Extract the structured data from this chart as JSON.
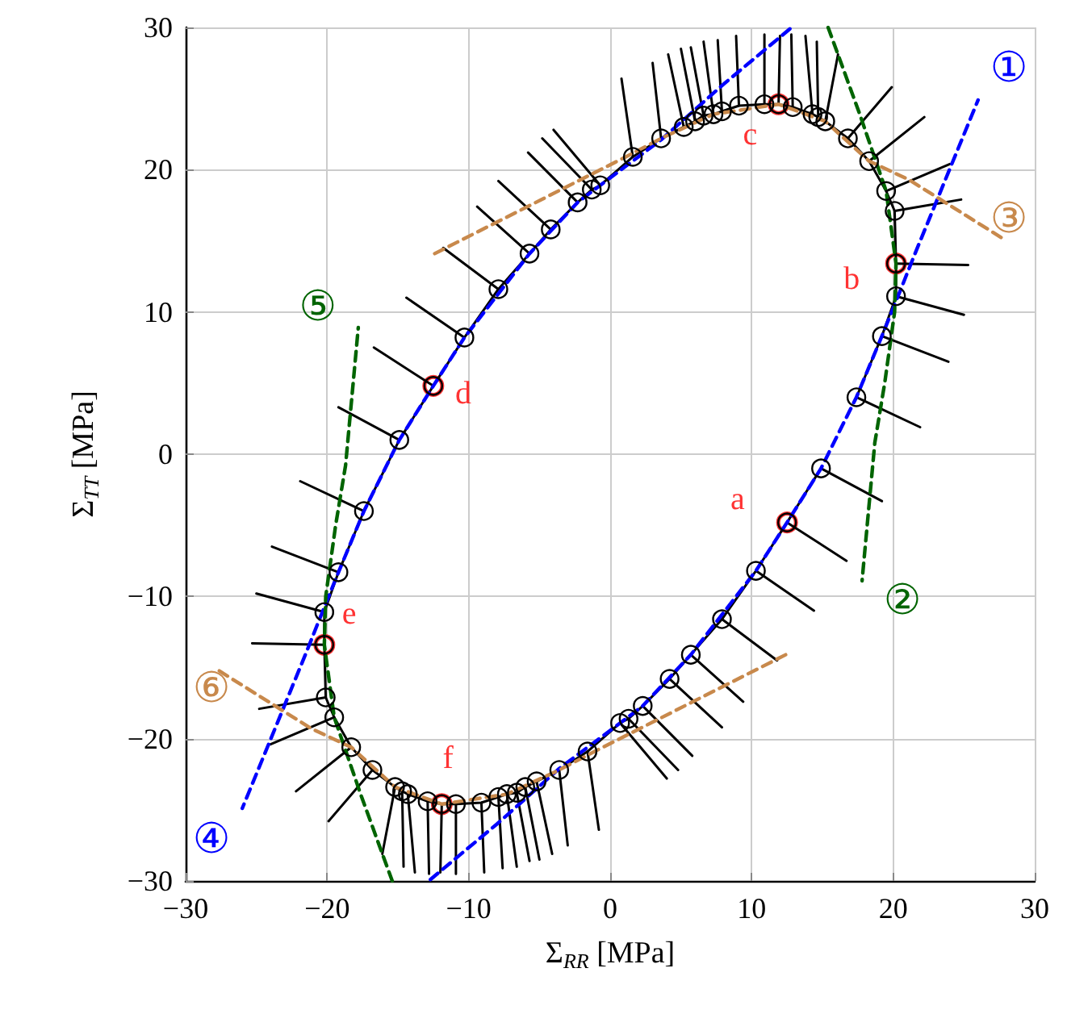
{
  "chart_data": {
    "type": "line",
    "xlabel": "Σ$_{RR}$ [MPa]",
    "ylabel": "Σ$_{TT}$ [MPa]",
    "xlim": [
      -30,
      30
    ],
    "ylim": [
      -30,
      30
    ],
    "xticks": [
      {
        "value": -30,
        "label": "−30"
      },
      {
        "value": -20,
        "label": "−20"
      },
      {
        "value": -10,
        "label": "−10"
      },
      0,
      10,
      20,
      30
    ],
    "yticks": [
      {
        "value": -30,
        "label": "−30"
      },
      {
        "value": -20,
        "label": "−20"
      },
      {
        "value": -10,
        "label": "−10"
      },
      0,
      10,
      20,
      30
    ],
    "grid": true,
    "series": [
      {
        "type": "line",
        "color": "#000000",
        "marker": "circle",
        "line_style": "solid",
        "x": [
          14.9,
          12.5,
          10.3,
          7.9,
          5.7,
          4.2,
          2.3,
          1.3,
          0.7,
          -1.6,
          -3.6,
          -5.2,
          -6.0,
          -6.6,
          -7.3,
          -7.9,
          -9.1,
          -10.9,
          -11.9,
          -12.9,
          -14.3,
          -14.7,
          -15.2,
          -16.8,
          -18.3,
          -19.5,
          -20.1,
          -20.2,
          -20.2,
          -19.2,
          -17.4,
          -14.9,
          -12.5,
          -10.3,
          -7.9,
          -5.7,
          -4.2,
          -2.3,
          -1.3,
          -0.7,
          1.6,
          3.6,
          5.2,
          6.0,
          6.6,
          7.3,
          7.9,
          9.1,
          10.9,
          11.9,
          12.9,
          14.3,
          14.7,
          15.2,
          16.8,
          18.3,
          19.5,
          20.1,
          20.2,
          20.2,
          19.2,
          17.4
        ],
        "values": [
          -1.0,
          -4.8,
          -8.2,
          -11.6,
          -14.1,
          -15.8,
          -17.7,
          -18.6,
          -18.9,
          -20.9,
          -22.2,
          -23.0,
          -23.4,
          -23.8,
          -23.9,
          -24.1,
          -24.5,
          -24.6,
          -24.6,
          -24.4,
          -23.9,
          -23.7,
          -23.4,
          -22.2,
          -20.6,
          -18.5,
          -17.1,
          -13.4,
          -11.1,
          -8.3,
          -4.0,
          1.0,
          4.8,
          8.2,
          11.6,
          14.1,
          15.8,
          17.7,
          18.6,
          18.9,
          20.9,
          22.2,
          23.0,
          23.4,
          23.8,
          23.9,
          24.1,
          24.5,
          24.6,
          24.6,
          24.4,
          23.9,
          23.7,
          23.4,
          22.2,
          20.6,
          18.5,
          17.1,
          13.4,
          11.1,
          8.3,
          4.0
        ]
      },
      {
        "type": "line",
        "color": "#000000",
        "marker": "none",
        "line_style": "solid",
        "x": [
          14.9,
          19.2,
          null,
          12.5,
          16.7,
          null,
          10.3,
          14.4,
          null,
          7.9,
          11.8,
          null,
          5.7,
          9.4,
          null,
          4.2,
          7.9,
          null,
          2.3,
          5.8,
          null,
          1.3,
          4.8,
          null,
          0.7,
          4.0,
          null,
          -1.6,
          -0.8,
          null,
          -3.6,
          -3.0,
          null,
          -5.2,
          -4.1,
          null,
          -6.0,
          -5.0,
          null,
          -6.6,
          -5.7,
          null,
          -7.3,
          -6.6,
          null,
          -7.9,
          -7.6,
          null,
          -9.1,
          -8.9,
          null,
          -10.9,
          -10.9,
          null,
          -11.9,
          -12.0,
          null,
          -12.9,
          -12.8,
          null,
          -14.3,
          -13.8,
          null,
          -14.7,
          -14.6,
          null,
          -15.2,
          -16.1,
          null,
          -16.8,
          -19.9,
          null,
          -18.3,
          -22.2,
          null,
          -19.5,
          -24.0,
          null,
          -20.1,
          -24.8,
          null,
          -20.2,
          -25.3,
          null,
          -20.2,
          -25.0,
          null,
          -19.2,
          -23.9,
          null,
          -17.4,
          -21.9,
          null,
          -14.9,
          -19.2,
          null,
          -12.5,
          -16.7,
          null,
          -10.3,
          -14.4,
          null,
          -7.9,
          -11.8,
          null,
          -5.7,
          -9.4,
          null,
          -4.2,
          -7.9,
          null,
          -2.3,
          -5.8,
          null,
          -1.3,
          -4.8,
          null,
          -0.7,
          -4.0,
          null,
          1.6,
          0.8,
          null,
          3.6,
          3.0,
          null,
          5.2,
          4.1,
          null,
          6.0,
          5.0,
          null,
          6.6,
          5.7,
          null,
          7.3,
          6.6,
          null,
          7.9,
          7.6,
          null,
          9.1,
          8.9,
          null,
          10.9,
          10.9,
          null,
          11.9,
          12.0,
          null,
          12.9,
          12.8,
          null,
          14.3,
          13.8,
          null,
          14.7,
          14.6,
          null,
          15.2,
          16.1,
          null,
          16.8,
          19.9,
          null,
          18.3,
          22.2,
          null,
          19.5,
          24.0,
          null,
          20.1,
          24.8,
          null,
          20.2,
          25.3,
          null,
          20.2,
          25.0,
          null,
          19.2,
          23.9,
          null,
          17.4,
          21.9
        ],
        "values": [
          -1.0,
          -3.3,
          null,
          -4.8,
          -7.5,
          null,
          -8.2,
          -11.0,
          null,
          -11.6,
          -14.5,
          null,
          -14.1,
          -17.4,
          null,
          -15.8,
          -19.2,
          null,
          -17.7,
          -21.2,
          null,
          -18.6,
          -22.2,
          null,
          -18.9,
          -22.8,
          null,
          -20.9,
          -26.4,
          null,
          -22.2,
          -27.5,
          null,
          -23.0,
          -28.1,
          null,
          -23.4,
          -28.5,
          null,
          -23.8,
          -28.6,
          null,
          -23.9,
          -29.0,
          null,
          -24.1,
          -29.1,
          null,
          -24.5,
          -29.4,
          null,
          -24.6,
          -29.5,
          null,
          -24.6,
          -29.4,
          null,
          -24.4,
          -29.5,
          null,
          -23.9,
          -29.4,
          null,
          -23.7,
          -29.0,
          null,
          -23.4,
          -28.1,
          null,
          -22.2,
          -25.8,
          null,
          -20.6,
          -23.7,
          null,
          -18.5,
          -20.4,
          null,
          -17.1,
          -17.9,
          null,
          -13.4,
          -13.3,
          null,
          -11.1,
          -9.8,
          null,
          -8.3,
          -6.5,
          null,
          -4.0,
          -1.9,
          null,
          1.0,
          3.3,
          null,
          4.8,
          7.5,
          null,
          8.2,
          11.0,
          null,
          11.6,
          14.5,
          null,
          14.1,
          17.4,
          null,
          15.8,
          19.2,
          null,
          17.7,
          21.2,
          null,
          18.6,
          22.2,
          null,
          18.9,
          22.8,
          null,
          20.9,
          26.4,
          null,
          22.2,
          27.5,
          null,
          23.0,
          28.1,
          null,
          23.4,
          28.5,
          null,
          23.8,
          28.6,
          null,
          23.9,
          29.0,
          null,
          24.1,
          29.1,
          null,
          24.5,
          29.4,
          null,
          24.6,
          29.5,
          null,
          24.6,
          29.4,
          null,
          24.4,
          29.5,
          null,
          23.9,
          29.4,
          null,
          23.7,
          29.0,
          null,
          23.4,
          28.1,
          null,
          22.2,
          25.8,
          null,
          20.6,
          23.7,
          null,
          18.5,
          20.4,
          null,
          17.1,
          17.9,
          null,
          13.4,
          13.3,
          null,
          11.1,
          9.8,
          null,
          8.3,
          6.5,
          null,
          4.0,
          1.9
        ]
      },
      {
        "type": "line",
        "name": "①",
        "color": "#0000ff",
        "marker": "none",
        "line_style": "dashed",
        "x": [
          -12.7,
          -8.0,
          -3.6,
          0.7,
          2.3,
          5.7,
          10.3,
          12.5,
          14.9,
          17.4,
          19.2,
          20.3,
          21.5,
          26.0
        ],
        "values": [
          -29.9,
          -26.0,
          -22.1,
          -18.9,
          -17.7,
          -14.1,
          -8.2,
          -4.8,
          -1.0,
          4.0,
          8.3,
          11.0,
          14.0,
          24.9
        ]
      },
      {
        "type": "line",
        "name": "④",
        "color": "#0000ff",
        "marker": "none",
        "line_style": "dashed",
        "x": [
          12.7,
          8.0,
          3.6,
          -0.7,
          -2.3,
          -5.7,
          -10.3,
          -12.5,
          -14.9,
          -17.4,
          -19.2,
          -20.3,
          -21.5,
          -26.0
        ],
        "values": [
          29.9,
          26.0,
          22.1,
          18.9,
          17.7,
          14.1,
          8.2,
          4.8,
          1.0,
          -4.0,
          -8.3,
          -11.0,
          -14.0,
          -24.9
        ]
      },
      {
        "type": "line",
        "name": "②",
        "color": "#006400",
        "marker": "none",
        "line_style": "dashed",
        "x": [
          15.4,
          17.6,
          19.5,
          20.2,
          20.1,
          19.4,
          18.7,
          17.8
        ],
        "values": [
          30.0,
          24.0,
          18.5,
          13.4,
          10.0,
          5.0,
          0.8,
          -8.9
        ]
      },
      {
        "type": "line",
        "name": "⑤",
        "color": "#006400",
        "marker": "none",
        "line_style": "dashed",
        "x": [
          -15.4,
          -17.6,
          -19.5,
          -20.2,
          -20.1,
          -19.4,
          -18.7,
          -17.8
        ],
        "values": [
          -30.0,
          -24.0,
          -18.5,
          -13.4,
          -10.0,
          -5.0,
          -0.8,
          8.9
        ]
      },
      {
        "type": "line",
        "name": "③",
        "color": "#c8894c",
        "marker": "none",
        "line_style": "dashed",
        "x": [
          -12.4,
          1.1,
          3.6,
          7.3,
          11.9,
          15.2,
          18.3,
          21.1,
          28.0
        ],
        "values": [
          14.1,
          20.9,
          22.2,
          23.9,
          24.6,
          23.4,
          20.6,
          19.3,
          15.0
        ]
      },
      {
        "type": "line",
        "name": "⑥",
        "color": "#c8894c",
        "marker": "none",
        "line_style": "dashed",
        "x": [
          12.4,
          -1.1,
          -3.6,
          -7.3,
          -11.9,
          -15.2,
          -18.3,
          -21.1,
          -28.0
        ],
        "values": [
          -14.1,
          -20.9,
          -22.2,
          -23.9,
          -24.6,
          -23.4,
          -20.6,
          -19.3,
          -15.0
        ]
      },
      {
        "type": "scatter",
        "color": "#ff0000",
        "marker": "circle",
        "x": [
          12.5,
          20.2,
          11.9,
          -12.5,
          -20.2,
          -11.9
        ],
        "values": [
          -4.8,
          13.4,
          24.6,
          4.8,
          -13.4,
          -24.6
        ],
        "value_labels": [
          "a",
          "b",
          "c",
          "d",
          "e",
          "f"
        ]
      }
    ]
  }
}
